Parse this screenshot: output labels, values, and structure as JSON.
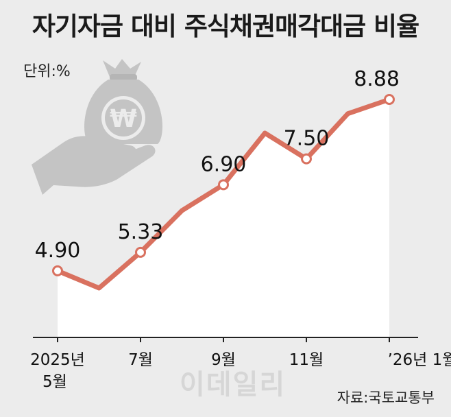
{
  "title": "자기자금 대비 주식채권매각대금 비율",
  "unit": "단위:%",
  "source": "자료:국토교통부",
  "watermark": "이데일리",
  "icon": "money-bag-hand-icon",
  "colors": {
    "line": "#d9715f",
    "area": "#ffffff",
    "background": "#ececec",
    "axis": "#222222",
    "icon": "#c4c4c4"
  },
  "chart_data": {
    "type": "area",
    "x": [
      "2025-05",
      "2025-06",
      "2025-07",
      "2025-08",
      "2025-09",
      "2025-10",
      "2025-11",
      "2025-12",
      "2026-01"
    ],
    "values": [
      4.9,
      4.5,
      5.33,
      6.3,
      6.9,
      8.1,
      7.5,
      8.55,
      8.88
    ],
    "labeled_points": [
      {
        "x": "2025-05",
        "value": "4.90"
      },
      {
        "x": "2025-07",
        "value": "5.33"
      },
      {
        "x": "2025-09",
        "value": "6.90"
      },
      {
        "x": "2025-11",
        "value": "7.50"
      },
      {
        "x": "2026-01",
        "value": "8.88"
      }
    ],
    "tick_labels": [
      {
        "x": "2025-05",
        "lines": [
          "2025년",
          "5월"
        ]
      },
      {
        "x": "2025-07",
        "lines": [
          "7월"
        ]
      },
      {
        "x": "2025-09",
        "lines": [
          "9월"
        ]
      },
      {
        "x": "2025-11",
        "lines": [
          "11월"
        ]
      },
      {
        "x": "2026-01",
        "lines": [
          "’26년 1월"
        ]
      }
    ],
    "grid": false,
    "legend": "none"
  }
}
